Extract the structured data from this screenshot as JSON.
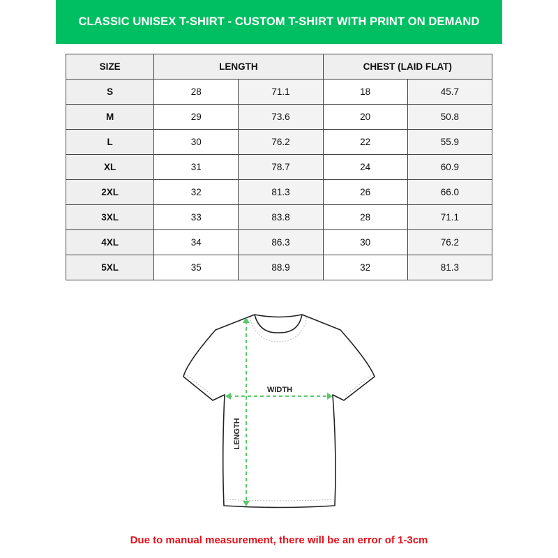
{
  "title": "CLASSIC UNISEX T-SHIRT - CUSTOM T-SHIRT WITH PRINT ON DEMAND",
  "table": {
    "headers": [
      "SIZE",
      "LENGTH",
      "CHEST (LAID FLAT)"
    ],
    "rows": [
      [
        "S",
        "28",
        "71.1",
        "18",
        "45.7"
      ],
      [
        "M",
        "29",
        "73.6",
        "20",
        "50.8"
      ],
      [
        "L",
        "30",
        "76.2",
        "22",
        "55.9"
      ],
      [
        "XL",
        "31",
        "78.7",
        "24",
        "60.9"
      ],
      [
        "2XL",
        "32",
        "81.3",
        "26",
        "66.0"
      ],
      [
        "3XL",
        "33",
        "83.8",
        "28",
        "71.1"
      ],
      [
        "4XL",
        "34",
        "86.3",
        "30",
        "76.2"
      ],
      [
        "5XL",
        "35",
        "88.9",
        "32",
        "81.3"
      ]
    ]
  },
  "diagram": {
    "width_label": "WIDTH",
    "length_label": "LENGTH",
    "arrow_color": "#5cc96b"
  },
  "footer": "Due to manual measurement, there will be an error of 1-3cm",
  "colors": {
    "banner": "#00bf63",
    "footer_text": "#e3121b"
  }
}
